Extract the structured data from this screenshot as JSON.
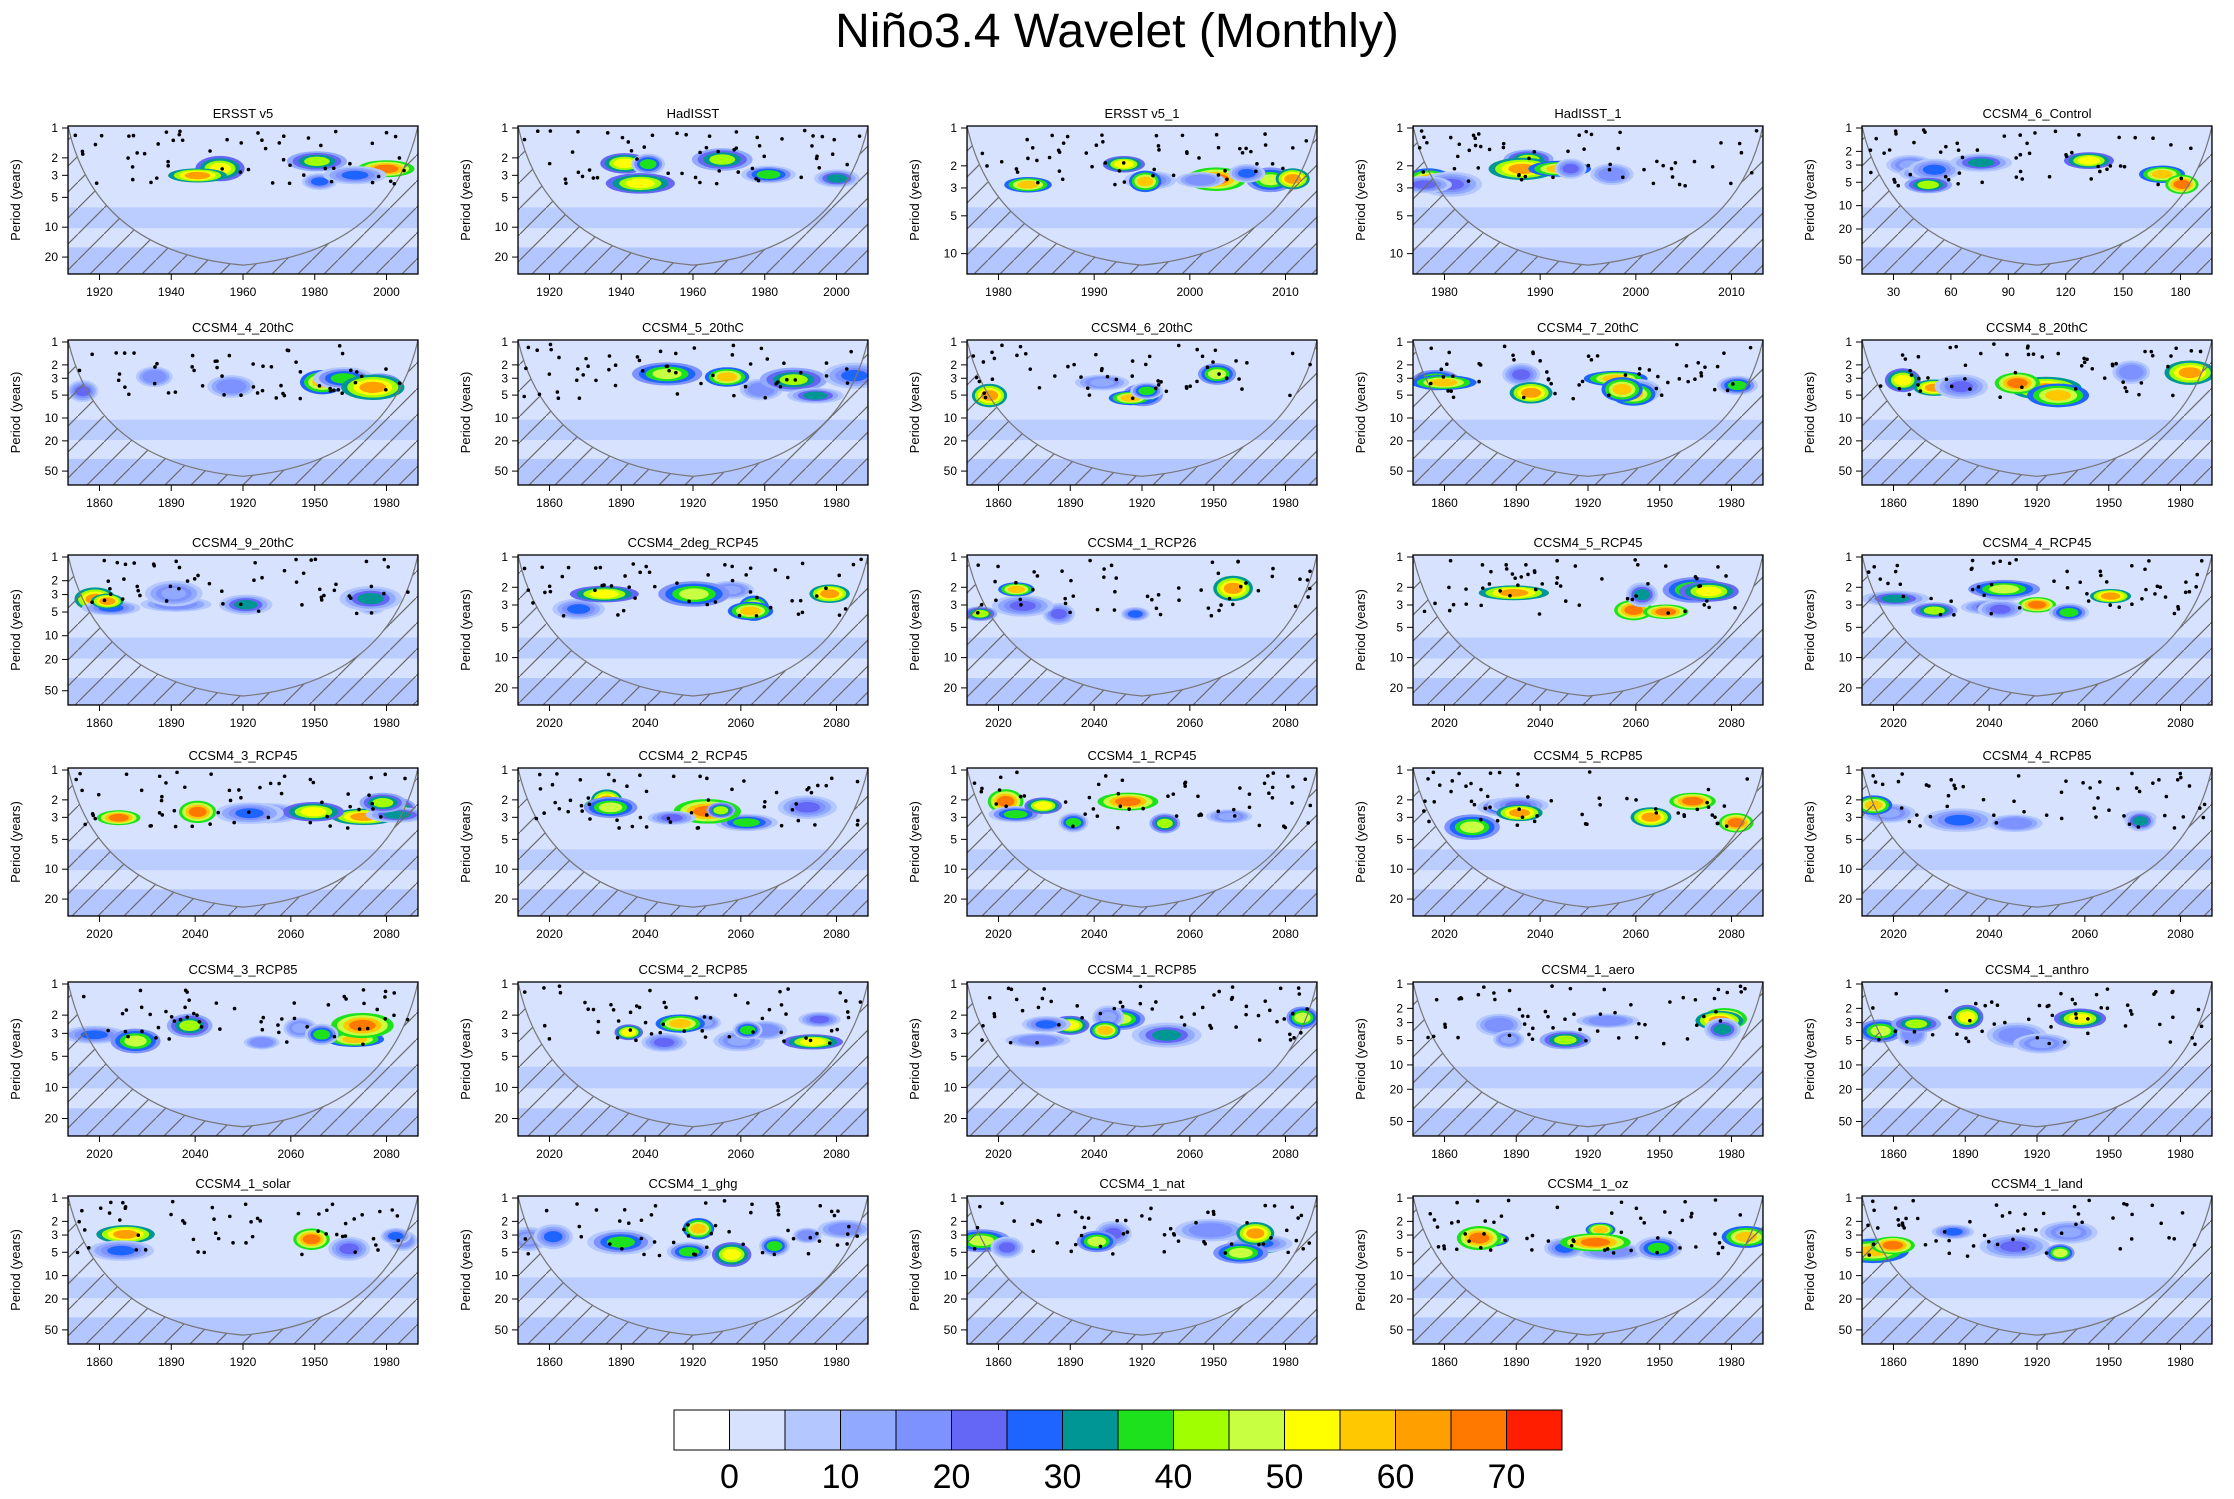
{
  "title": "Niño3.4 Wavelet (Monthly)",
  "colorbar": {
    "colors": [
      "#ffffff",
      "#d7e2ff",
      "#b4c8ff",
      "#91aaff",
      "#7d91ff",
      "#6466f5",
      "#1e64ff",
      "#009696",
      "#1ee11e",
      "#a0ff00",
      "#c8ff40",
      "#ffff00",
      "#ffc800",
      "#ffa000",
      "#ff7800",
      "#ff1e00"
    ],
    "labels": [
      "0",
      "10",
      "20",
      "30",
      "40",
      "50",
      "60",
      "70"
    ]
  },
  "axis_label": "Period (years)",
  "chart_data": [
    {
      "type": "heatmap",
      "title": "ERSST v5",
      "xlabel": "",
      "ylabel": "Period (years)",
      "xticks": [
        "1920",
        "1940",
        "1960",
        "1980",
        "2000"
      ],
      "yticks": [
        "1",
        "2",
        "3",
        "5",
        "10",
        "20"
      ]
    },
    {
      "type": "heatmap",
      "title": "HadISST",
      "xlabel": "",
      "ylabel": "Period (years)",
      "xticks": [
        "1920",
        "1940",
        "1960",
        "1980",
        "2000"
      ],
      "yticks": [
        "1",
        "2",
        "3",
        "5",
        "10",
        "20"
      ]
    },
    {
      "type": "heatmap",
      "title": "ERSST v5_1",
      "xlabel": "",
      "ylabel": "Period (years)",
      "xticks": [
        "1980",
        "1990",
        "2000",
        "2010"
      ],
      "yticks": [
        "1",
        "2",
        "3",
        "5",
        "10"
      ]
    },
    {
      "type": "heatmap",
      "title": "HadISST_1",
      "xlabel": "",
      "ylabel": "Period (years)",
      "xticks": [
        "1980",
        "1990",
        "2000",
        "2010"
      ],
      "yticks": [
        "1",
        "2",
        "3",
        "5",
        "10"
      ]
    },
    {
      "type": "heatmap",
      "title": "CCSM4_6_Control",
      "xlabel": "",
      "ylabel": "Period (years)",
      "xticks": [
        "30",
        "60",
        "90",
        "120",
        "150",
        "180"
      ],
      "yticks": [
        "1",
        "2",
        "3",
        "5",
        "10",
        "20",
        "50"
      ]
    },
    {
      "type": "heatmap",
      "title": "CCSM4_4_20thC",
      "xlabel": "",
      "ylabel": "Period (years)",
      "xticks": [
        "1860",
        "1890",
        "1920",
        "1950",
        "1980"
      ],
      "yticks": [
        "1",
        "2",
        "3",
        "5",
        "10",
        "20",
        "50"
      ]
    },
    {
      "type": "heatmap",
      "title": "CCSM4_5_20thC",
      "xlabel": "",
      "ylabel": "Period (years)",
      "xticks": [
        "1860",
        "1890",
        "1920",
        "1950",
        "1980"
      ],
      "yticks": [
        "1",
        "2",
        "3",
        "5",
        "10",
        "20",
        "50"
      ]
    },
    {
      "type": "heatmap",
      "title": "CCSM4_6_20thC",
      "xlabel": "",
      "ylabel": "Period (years)",
      "xticks": [
        "1860",
        "1890",
        "1920",
        "1950",
        "1980"
      ],
      "yticks": [
        "1",
        "2",
        "3",
        "5",
        "10",
        "20",
        "50"
      ]
    },
    {
      "type": "heatmap",
      "title": "CCSM4_7_20thC",
      "xlabel": "",
      "ylabel": "Period (years)",
      "xticks": [
        "1860",
        "1890",
        "1920",
        "1950",
        "1980"
      ],
      "yticks": [
        "1",
        "2",
        "3",
        "5",
        "10",
        "20",
        "50"
      ]
    },
    {
      "type": "heatmap",
      "title": "CCSM4_8_20thC",
      "xlabel": "",
      "ylabel": "Period (years)",
      "xticks": [
        "1860",
        "1890",
        "1920",
        "1950",
        "1980"
      ],
      "yticks": [
        "1",
        "2",
        "3",
        "5",
        "10",
        "20",
        "50"
      ]
    },
    {
      "type": "heatmap",
      "title": "CCSM4_9_20thC",
      "xlabel": "",
      "ylabel": "Period (years)",
      "xticks": [
        "1860",
        "1890",
        "1920",
        "1950",
        "1980"
      ],
      "yticks": [
        "1",
        "2",
        "3",
        "5",
        "10",
        "20",
        "50"
      ]
    },
    {
      "type": "heatmap",
      "title": "CCSM4_2deg_RCP45",
      "xlabel": "",
      "ylabel": "Period (years)",
      "xticks": [
        "2020",
        "2040",
        "2060",
        "2080"
      ],
      "yticks": [
        "1",
        "2",
        "3",
        "5",
        "10",
        "20"
      ]
    },
    {
      "type": "heatmap",
      "title": "CCSM4_1_RCP26",
      "xlabel": "",
      "ylabel": "Period (years)",
      "xticks": [
        "2020",
        "2040",
        "2060",
        "2080"
      ],
      "yticks": [
        "1",
        "2",
        "3",
        "5",
        "10",
        "20"
      ]
    },
    {
      "type": "heatmap",
      "title": "CCSM4_5_RCP45",
      "xlabel": "",
      "ylabel": "Period (years)",
      "xticks": [
        "2020",
        "2040",
        "2060",
        "2080"
      ],
      "yticks": [
        "1",
        "2",
        "3",
        "5",
        "10",
        "20"
      ]
    },
    {
      "type": "heatmap",
      "title": "CCSM4_4_RCP45",
      "xlabel": "",
      "ylabel": "Period (years)",
      "xticks": [
        "2020",
        "2040",
        "2060",
        "2080"
      ],
      "yticks": [
        "1",
        "2",
        "3",
        "5",
        "10",
        "20"
      ]
    },
    {
      "type": "heatmap",
      "title": "CCSM4_3_RCP45",
      "xlabel": "",
      "ylabel": "Period (years)",
      "xticks": [
        "2020",
        "2040",
        "2060",
        "2080"
      ],
      "yticks": [
        "1",
        "2",
        "3",
        "5",
        "10",
        "20"
      ]
    },
    {
      "type": "heatmap",
      "title": "CCSM4_2_RCP45",
      "xlabel": "",
      "ylabel": "Period (years)",
      "xticks": [
        "2020",
        "2040",
        "2060",
        "2080"
      ],
      "yticks": [
        "1",
        "2",
        "3",
        "5",
        "10",
        "20"
      ]
    },
    {
      "type": "heatmap",
      "title": "CCSM4_1_RCP45",
      "xlabel": "",
      "ylabel": "Period (years)",
      "xticks": [
        "2020",
        "2040",
        "2060",
        "2080"
      ],
      "yticks": [
        "1",
        "2",
        "3",
        "5",
        "10",
        "20"
      ]
    },
    {
      "type": "heatmap",
      "title": "CCSM4_5_RCP85",
      "xlabel": "",
      "ylabel": "Period (years)",
      "xticks": [
        "2020",
        "2040",
        "2060",
        "2080"
      ],
      "yticks": [
        "1",
        "2",
        "3",
        "5",
        "10",
        "20"
      ]
    },
    {
      "type": "heatmap",
      "title": "CCSM4_4_RCP85",
      "xlabel": "",
      "ylabel": "Period (years)",
      "xticks": [
        "2020",
        "2040",
        "2060",
        "2080"
      ],
      "yticks": [
        "1",
        "2",
        "3",
        "5",
        "10",
        "20"
      ]
    },
    {
      "type": "heatmap",
      "title": "CCSM4_3_RCP85",
      "xlabel": "",
      "ylabel": "Period (years)",
      "xticks": [
        "2020",
        "2040",
        "2060",
        "2080"
      ],
      "yticks": [
        "1",
        "2",
        "3",
        "5",
        "10",
        "20"
      ]
    },
    {
      "type": "heatmap",
      "title": "CCSM4_2_RCP85",
      "xlabel": "",
      "ylabel": "Period (years)",
      "xticks": [
        "2020",
        "2040",
        "2060",
        "2080"
      ],
      "yticks": [
        "1",
        "2",
        "3",
        "5",
        "10",
        "20"
      ]
    },
    {
      "type": "heatmap",
      "title": "CCSM4_1_RCP85",
      "xlabel": "",
      "ylabel": "Period (years)",
      "xticks": [
        "2020",
        "2040",
        "2060",
        "2080"
      ],
      "yticks": [
        "1",
        "2",
        "3",
        "5",
        "10",
        "20"
      ]
    },
    {
      "type": "heatmap",
      "title": "CCSM4_1_aero",
      "xlabel": "",
      "ylabel": "Period (years)",
      "xticks": [
        "1860",
        "1890",
        "1920",
        "1950",
        "1980"
      ],
      "yticks": [
        "1",
        "2",
        "3",
        "5",
        "10",
        "20",
        "50"
      ]
    },
    {
      "type": "heatmap",
      "title": "CCSM4_1_anthro",
      "xlabel": "",
      "ylabel": "Period (years)",
      "xticks": [
        "1860",
        "1890",
        "1920",
        "1950",
        "1980"
      ],
      "yticks": [
        "1",
        "2",
        "3",
        "5",
        "10",
        "20",
        "50"
      ]
    },
    {
      "type": "heatmap",
      "title": "CCSM4_1_solar",
      "xlabel": "",
      "ylabel": "Period (years)",
      "xticks": [
        "1860",
        "1890",
        "1920",
        "1950",
        "1980"
      ],
      "yticks": [
        "1",
        "2",
        "3",
        "5",
        "10",
        "20",
        "50"
      ]
    },
    {
      "type": "heatmap",
      "title": "CCSM4_1_ghg",
      "xlabel": "",
      "ylabel": "Period (years)",
      "xticks": [
        "1860",
        "1890",
        "1920",
        "1950",
        "1980"
      ],
      "yticks": [
        "1",
        "2",
        "3",
        "5",
        "10",
        "20",
        "50"
      ]
    },
    {
      "type": "heatmap",
      "title": "CCSM4_1_nat",
      "xlabel": "",
      "ylabel": "Period (years)",
      "xticks": [
        "1860",
        "1890",
        "1920",
        "1950",
        "1980"
      ],
      "yticks": [
        "1",
        "2",
        "3",
        "5",
        "10",
        "20",
        "50"
      ]
    },
    {
      "type": "heatmap",
      "title": "CCSM4_1_oz",
      "xlabel": "",
      "ylabel": "Period (years)",
      "xticks": [
        "1860",
        "1890",
        "1920",
        "1950",
        "1980"
      ],
      "yticks": [
        "1",
        "2",
        "3",
        "5",
        "10",
        "20",
        "50"
      ]
    },
    {
      "type": "heatmap",
      "title": "CCSM4_1_land",
      "xlabel": "",
      "ylabel": "Period (years)",
      "xticks": [
        "1860",
        "1890",
        "1920",
        "1950",
        "1980"
      ],
      "yticks": [
        "1",
        "2",
        "3",
        "5",
        "10",
        "20",
        "50"
      ]
    }
  ]
}
